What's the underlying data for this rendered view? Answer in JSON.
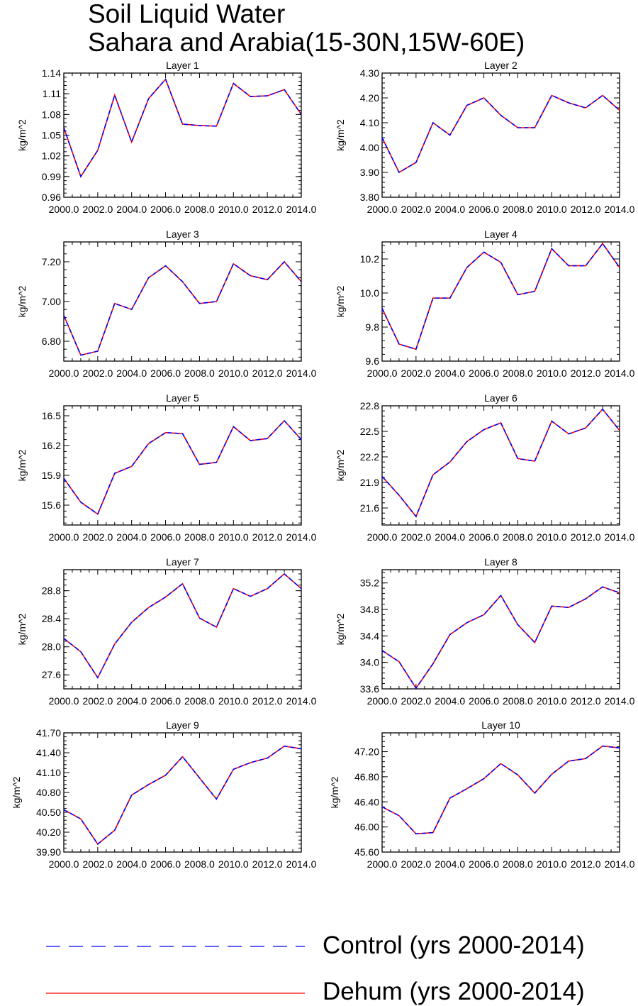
{
  "title": "Soil Liquid Water",
  "subtitle": "Sahara and Arabia(15-30N,15W-60E)",
  "legend": [
    {
      "label": "Control (yrs 2000-2014)",
      "color": "#0000ff",
      "style": "dashed"
    },
    {
      "label": "Dehum (yrs 2000-2014)",
      "color": "#ff0000",
      "style": "solid"
    }
  ],
  "chart_data": [
    {
      "type": "line",
      "title": "Layer 1",
      "ylabel": "kg/m^2",
      "xlim": [
        2000,
        2014
      ],
      "ylim": [
        0.96,
        1.14
      ],
      "xticks": [
        "2000.0",
        "2002.0",
        "2004.0",
        "2006.0",
        "2008.0",
        "2010.0",
        "2012.0",
        "2014.0"
      ],
      "yticks": [
        "0.96",
        "0.99",
        "1.02",
        "1.05",
        "1.08",
        "1.11",
        "1.14"
      ],
      "x": [
        2000,
        2001,
        2002,
        2003,
        2004,
        2005,
        2006,
        2007,
        2008,
        2009,
        2010,
        2011,
        2012,
        2013,
        2014
      ],
      "series": [
        {
          "name": "Control (yrs 2000-2014)",
          "values": [
            1.061,
            0.99,
            1.028,
            1.108,
            1.04,
            1.103,
            1.131,
            1.066,
            1.064,
            1.063,
            1.125,
            1.106,
            1.107,
            1.116,
            1.08
          ]
        },
        {
          "name": "Dehum (yrs 2000-2014)",
          "values": [
            1.061,
            0.99,
            1.028,
            1.108,
            1.04,
            1.103,
            1.131,
            1.066,
            1.064,
            1.063,
            1.125,
            1.106,
            1.107,
            1.116,
            1.08
          ]
        }
      ]
    },
    {
      "type": "line",
      "title": "Layer 2",
      "ylabel": "kg/m^2",
      "xlim": [
        2000,
        2014
      ],
      "ylim": [
        3.8,
        4.3
      ],
      "xticks": [
        "2000.0",
        "2002.0",
        "2004.0",
        "2006.0",
        "2008.0",
        "2010.0",
        "2012.0",
        "2014.0"
      ],
      "yticks": [
        "3.80",
        "3.90",
        "4.00",
        "4.10",
        "4.20",
        "4.30"
      ],
      "x": [
        2000,
        2001,
        2002,
        2003,
        2004,
        2005,
        2006,
        2007,
        2008,
        2009,
        2010,
        2011,
        2012,
        2013,
        2014
      ],
      "series": [
        {
          "name": "Control (yrs 2000-2014)",
          "values": [
            4.04,
            3.9,
            3.94,
            4.1,
            4.05,
            4.17,
            4.2,
            4.13,
            4.08,
            4.08,
            4.21,
            4.18,
            4.16,
            4.21,
            4.15
          ]
        },
        {
          "name": "Dehum (yrs 2000-2014)",
          "values": [
            4.04,
            3.9,
            3.94,
            4.1,
            4.05,
            4.17,
            4.2,
            4.13,
            4.08,
            4.08,
            4.21,
            4.18,
            4.16,
            4.21,
            4.15
          ]
        }
      ]
    },
    {
      "type": "line",
      "title": "Layer 3",
      "ylabel": "kg/m^2",
      "xlim": [
        2000,
        2014
      ],
      "ylim": [
        6.7,
        7.3
      ],
      "xticks": [
        "2000.0",
        "2002.0",
        "2004.0",
        "2006.0",
        "2008.0",
        "2010.0",
        "2012.0",
        "2014.0"
      ],
      "yticks": [
        "6.80",
        "7.00",
        "7.20"
      ],
      "x": [
        2000,
        2001,
        2002,
        2003,
        2004,
        2005,
        2006,
        2007,
        2008,
        2009,
        2010,
        2011,
        2012,
        2013,
        2014
      ],
      "series": [
        {
          "name": "Control (yrs 2000-2014)",
          "values": [
            6.93,
            6.73,
            6.75,
            6.99,
            6.96,
            7.12,
            7.18,
            7.1,
            6.99,
            7.0,
            7.19,
            7.13,
            7.11,
            7.2,
            7.1
          ]
        },
        {
          "name": "Dehum (yrs 2000-2014)",
          "values": [
            6.93,
            6.73,
            6.75,
            6.99,
            6.96,
            7.12,
            7.18,
            7.1,
            6.99,
            7.0,
            7.19,
            7.13,
            7.11,
            7.2,
            7.1
          ]
        }
      ]
    },
    {
      "type": "line",
      "title": "Layer 4",
      "ylabel": "kg/m^2",
      "xlim": [
        2000,
        2014
      ],
      "ylim": [
        9.6,
        10.3
      ],
      "xticks": [
        "2000.0",
        "2002.0",
        "2004.0",
        "2006.0",
        "2008.0",
        "2010.0",
        "2012.0",
        "2014.0"
      ],
      "yticks": [
        "9.6",
        "9.8",
        "10.0",
        "10.2"
      ],
      "x": [
        2000,
        2001,
        2002,
        2003,
        2004,
        2005,
        2006,
        2007,
        2008,
        2009,
        2010,
        2011,
        2012,
        2013,
        2014
      ],
      "series": [
        {
          "name": "Control (yrs 2000-2014)",
          "values": [
            9.91,
            9.7,
            9.67,
            9.97,
            9.97,
            10.15,
            10.24,
            10.18,
            9.99,
            10.01,
            10.26,
            10.16,
            10.16,
            10.29,
            10.15
          ]
        },
        {
          "name": "Dehum (yrs 2000-2014)",
          "values": [
            9.91,
            9.7,
            9.67,
            9.97,
            9.97,
            10.15,
            10.24,
            10.18,
            9.99,
            10.01,
            10.26,
            10.16,
            10.16,
            10.29,
            10.15
          ]
        }
      ]
    },
    {
      "type": "line",
      "title": "Layer 5",
      "ylabel": "kg/m^2",
      "xlim": [
        2000,
        2014
      ],
      "ylim": [
        15.4,
        16.6
      ],
      "xticks": [
        "2000.0",
        "2002.0",
        "2004.0",
        "2006.0",
        "2008.0",
        "2010.0",
        "2012.0",
        "2014.0"
      ],
      "yticks": [
        "15.6",
        "15.9",
        "16.2",
        "16.5"
      ],
      "x": [
        2000,
        2001,
        2002,
        2003,
        2004,
        2005,
        2006,
        2007,
        2008,
        2009,
        2010,
        2011,
        2012,
        2013,
        2014
      ],
      "series": [
        {
          "name": "Control (yrs 2000-2014)",
          "values": [
            15.87,
            15.63,
            15.51,
            15.92,
            15.99,
            16.22,
            16.33,
            16.32,
            16.01,
            16.03,
            16.39,
            16.25,
            16.27,
            16.45,
            16.26
          ]
        },
        {
          "name": "Dehum (yrs 2000-2014)",
          "values": [
            15.87,
            15.63,
            15.51,
            15.92,
            15.99,
            16.22,
            16.33,
            16.32,
            16.01,
            16.03,
            16.39,
            16.25,
            16.27,
            16.45,
            16.26
          ]
        }
      ]
    },
    {
      "type": "line",
      "title": "Layer 6",
      "ylabel": "kg/m^2",
      "xlim": [
        2000,
        2014
      ],
      "ylim": [
        21.4,
        22.8
      ],
      "xticks": [
        "2000.0",
        "2002.0",
        "2004.0",
        "2006.0",
        "2008.0",
        "2010.0",
        "2012.0",
        "2014.0"
      ],
      "yticks": [
        "21.6",
        "21.9",
        "22.2",
        "22.5",
        "22.8"
      ],
      "x": [
        2000,
        2001,
        2002,
        2003,
        2004,
        2005,
        2006,
        2007,
        2008,
        2009,
        2010,
        2011,
        2012,
        2013,
        2014
      ],
      "series": [
        {
          "name": "Control (yrs 2000-2014)",
          "values": [
            21.97,
            21.75,
            21.5,
            21.99,
            22.14,
            22.38,
            22.52,
            22.6,
            22.18,
            22.15,
            22.62,
            22.47,
            22.54,
            22.76,
            22.51
          ]
        },
        {
          "name": "Dehum (yrs 2000-2014)",
          "values": [
            21.97,
            21.75,
            21.5,
            21.99,
            22.14,
            22.38,
            22.52,
            22.6,
            22.18,
            22.15,
            22.62,
            22.47,
            22.54,
            22.76,
            22.51
          ]
        }
      ]
    },
    {
      "type": "line",
      "title": "Layer 7",
      "ylabel": "kg/m^2",
      "xlim": [
        2000,
        2014
      ],
      "ylim": [
        27.4,
        29.1
      ],
      "xticks": [
        "2000.0",
        "2002.0",
        "2004.0",
        "2006.0",
        "2008.0",
        "2010.0",
        "2012.0",
        "2014.0"
      ],
      "yticks": [
        "27.6",
        "28.0",
        "28.4",
        "28.8"
      ],
      "x": [
        2000,
        2001,
        2002,
        2003,
        2004,
        2005,
        2006,
        2007,
        2008,
        2009,
        2010,
        2011,
        2012,
        2013,
        2014
      ],
      "series": [
        {
          "name": "Control (yrs 2000-2014)",
          "values": [
            28.12,
            27.93,
            27.56,
            28.04,
            28.35,
            28.56,
            28.71,
            28.9,
            28.41,
            28.28,
            28.83,
            28.72,
            28.83,
            29.04,
            28.83
          ]
        },
        {
          "name": "Dehum (yrs 2000-2014)",
          "values": [
            28.12,
            27.93,
            27.56,
            28.04,
            28.35,
            28.56,
            28.71,
            28.9,
            28.41,
            28.28,
            28.83,
            28.72,
            28.83,
            29.04,
            28.83
          ]
        }
      ]
    },
    {
      "type": "line",
      "title": "Layer 8",
      "ylabel": "kg/m^2",
      "xlim": [
        2000,
        2014
      ],
      "ylim": [
        33.6,
        35.4
      ],
      "xticks": [
        "2000.0",
        "2002.0",
        "2004.0",
        "2006.0",
        "2008.0",
        "2010.0",
        "2012.0",
        "2014.0"
      ],
      "yticks": [
        "33.6",
        "34.0",
        "34.4",
        "34.8",
        "35.2"
      ],
      "x": [
        2000,
        2001,
        2002,
        2003,
        2004,
        2005,
        2006,
        2007,
        2008,
        2009,
        2010,
        2011,
        2012,
        2013,
        2014
      ],
      "series": [
        {
          "name": "Control (yrs 2000-2014)",
          "values": [
            34.18,
            34.01,
            33.61,
            33.98,
            34.42,
            34.6,
            34.72,
            35.01,
            34.57,
            34.3,
            34.85,
            34.83,
            34.96,
            35.14,
            35.05
          ]
        },
        {
          "name": "Dehum (yrs 2000-2014)",
          "values": [
            34.18,
            34.01,
            33.61,
            33.98,
            34.42,
            34.6,
            34.72,
            35.01,
            34.57,
            34.3,
            34.85,
            34.83,
            34.96,
            35.14,
            35.05
          ]
        }
      ]
    },
    {
      "type": "line",
      "title": "Layer 9",
      "ylabel": "kg/m^2",
      "xlim": [
        2000,
        2014
      ],
      "ylim": [
        39.9,
        41.7
      ],
      "xticks": [
        "2000.0",
        "2002.0",
        "2004.0",
        "2006.0",
        "2008.0",
        "2010.0",
        "2012.0",
        "2014.0"
      ],
      "yticks": [
        "39.90",
        "40.20",
        "40.50",
        "40.80",
        "41.10",
        "41.40",
        "41.70"
      ],
      "x": [
        2000,
        2001,
        2002,
        2003,
        2004,
        2005,
        2006,
        2007,
        2008,
        2009,
        2010,
        2011,
        2012,
        2013,
        2014
      ],
      "series": [
        {
          "name": "Control (yrs 2000-2014)",
          "values": [
            40.54,
            40.4,
            40.02,
            40.23,
            40.76,
            40.92,
            41.06,
            41.34,
            41.02,
            40.7,
            41.15,
            41.25,
            41.32,
            41.5,
            41.46
          ]
        },
        {
          "name": "Dehum (yrs 2000-2014)",
          "values": [
            40.54,
            40.4,
            40.02,
            40.23,
            40.76,
            40.92,
            41.06,
            41.34,
            41.02,
            40.7,
            41.15,
            41.25,
            41.32,
            41.5,
            41.46
          ]
        }
      ]
    },
    {
      "type": "line",
      "title": "Layer 10",
      "ylabel": "kg/m^2",
      "xlim": [
        2000,
        2014
      ],
      "ylim": [
        45.6,
        47.5
      ],
      "xticks": [
        "2000.0",
        "2002.0",
        "2004.0",
        "2006.0",
        "2008.0",
        "2010.0",
        "2012.0",
        "2014.0"
      ],
      "yticks": [
        "45.60",
        "46.00",
        "46.40",
        "46.80",
        "47.20"
      ],
      "x": [
        2000,
        2001,
        2002,
        2003,
        2004,
        2005,
        2006,
        2007,
        2008,
        2009,
        2010,
        2011,
        2012,
        2013,
        2014
      ],
      "series": [
        {
          "name": "Control (yrs 2000-2014)",
          "values": [
            46.32,
            46.18,
            45.89,
            45.91,
            46.46,
            46.61,
            46.77,
            47.01,
            46.83,
            46.54,
            46.84,
            47.05,
            47.09,
            47.29,
            47.26
          ]
        },
        {
          "name": "Dehum (yrs 2000-2014)",
          "values": [
            46.32,
            46.18,
            45.89,
            45.91,
            46.46,
            46.61,
            46.77,
            47.01,
            46.83,
            46.54,
            46.84,
            47.05,
            47.09,
            47.29,
            47.26
          ]
        }
      ]
    }
  ]
}
